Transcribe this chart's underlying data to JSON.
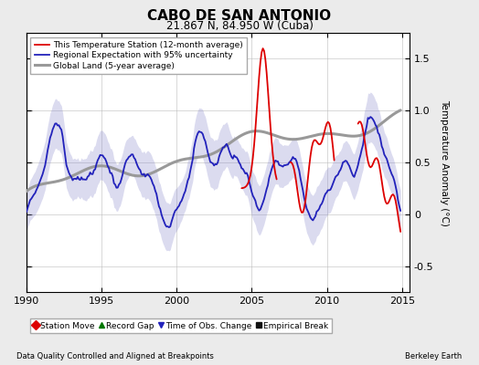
{
  "title": "CABO DE SAN ANTONIO",
  "subtitle": "21.867 N, 84.950 W (Cuba)",
  "xlabel_left": "Data Quality Controlled and Aligned at Breakpoints",
  "xlabel_right": "Berkeley Earth",
  "ylabel": "Temperature Anomaly (°C)",
  "xlim": [
    1990,
    2015.5
  ],
  "ylim": [
    -0.75,
    1.75
  ],
  "yticks": [
    -0.5,
    0.0,
    0.5,
    1.0,
    1.5
  ],
  "xticks": [
    1990,
    1995,
    2000,
    2005,
    2010,
    2015
  ],
  "background_color": "#ebebeb",
  "plot_bg_color": "#ffffff",
  "legend_items": [
    {
      "label": "This Temperature Station (12-month average)",
      "color": "#dd0000",
      "lw": 1.3
    },
    {
      "label": "Regional Expectation with 95% uncertainty",
      "color": "#2222bb",
      "lw": 1.3
    },
    {
      "label": "Global Land (5-year average)",
      "color": "#999999",
      "lw": 2.2
    }
  ],
  "bottom_legend": [
    {
      "label": "Station Move",
      "marker": "D",
      "color": "#dd0000"
    },
    {
      "label": "Record Gap",
      "marker": "^",
      "color": "#007700"
    },
    {
      "label": "Time of Obs. Change",
      "marker": "v",
      "color": "#2222bb"
    },
    {
      "label": "Empirical Break",
      "marker": "s",
      "color": "#111111"
    }
  ],
  "shading_color": "#8888cc",
  "shading_alpha": 0.3
}
